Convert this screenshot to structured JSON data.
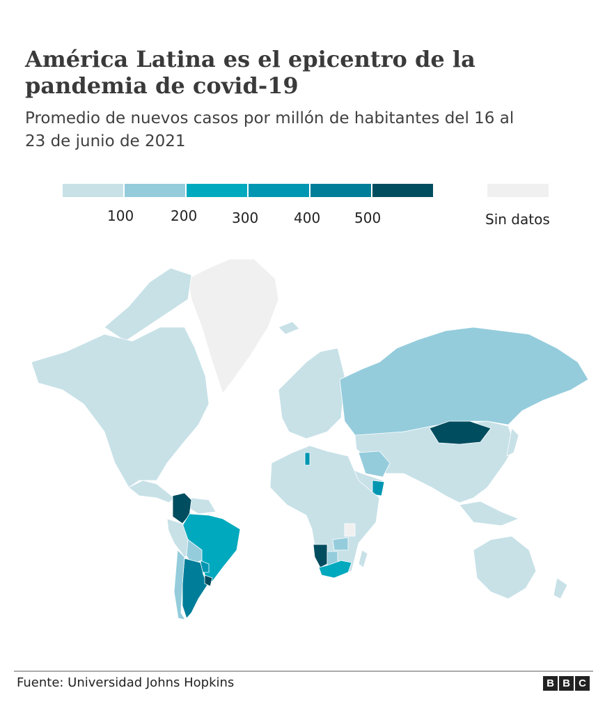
{
  "title": "América Latina es el epicentro de la pandemia de covid-19",
  "subtitle": "Promedio de nuevos casos por millón de habitantes del 16 al 23 de junio de 2021",
  "legend": {
    "colors": [
      "#c7e1e7",
      "#94ccdc",
      "#00a9bd",
      "#0096b2",
      "#007e99",
      "#004d5f"
    ],
    "ticks": [
      "100",
      "200",
      "300",
      "400",
      "500"
    ],
    "no_data_color": "#f0f0f0",
    "no_data_label": "Sin datos"
  },
  "footer": {
    "source": "Fuente: Universidad Johns Hopkins",
    "logo": [
      "B",
      "B",
      "C"
    ]
  }
}
